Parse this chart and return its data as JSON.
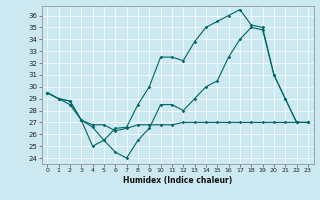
{
  "xlabel": "Humidex (Indice chaleur)",
  "bg_color": "#cce8f0",
  "line_color": "#006666",
  "xlim": [
    -0.5,
    23.5
  ],
  "ylim": [
    23.5,
    36.8
  ],
  "yticks": [
    24,
    25,
    26,
    27,
    28,
    29,
    30,
    31,
    32,
    33,
    34,
    35,
    36
  ],
  "xticks": [
    0,
    1,
    2,
    3,
    4,
    5,
    6,
    7,
    8,
    9,
    10,
    11,
    12,
    13,
    14,
    15,
    16,
    17,
    18,
    19,
    20,
    21,
    22,
    23
  ],
  "series1": {
    "x": [
      0,
      1,
      2,
      3,
      4,
      5,
      6,
      7,
      8,
      9,
      10,
      11,
      12,
      13,
      14,
      15,
      16,
      17,
      18,
      19,
      20,
      21,
      22,
      23
    ],
    "y": [
      29.5,
      29.0,
      28.8,
      27.2,
      26.6,
      25.5,
      26.5,
      26.6,
      28.5,
      30.0,
      32.5,
      32.5,
      32.2,
      33.8,
      35.0,
      35.5,
      36.0,
      36.5,
      35.2,
      35.0,
      31.0,
      29.0,
      27.0,
      27.0
    ]
  },
  "series2": {
    "x": [
      0,
      1,
      2,
      3,
      4,
      5,
      6,
      7,
      8,
      9,
      10,
      11,
      12,
      13,
      14,
      15,
      16,
      17,
      18,
      19,
      20,
      21,
      22,
      23
    ],
    "y": [
      29.5,
      29.0,
      28.8,
      27.2,
      25.0,
      25.5,
      24.5,
      24.0,
      25.5,
      26.5,
      28.5,
      28.5,
      28.0,
      29.0,
      30.0,
      30.5,
      32.5,
      34.0,
      35.0,
      34.8,
      31.0,
      29.0,
      27.0,
      27.0
    ]
  },
  "series3": {
    "x": [
      0,
      1,
      2,
      3,
      4,
      5,
      6,
      7,
      8,
      9,
      10,
      11,
      12,
      13,
      14,
      15,
      16,
      17,
      18,
      19,
      20,
      21,
      22,
      23
    ],
    "y": [
      29.5,
      29.0,
      28.5,
      27.2,
      26.8,
      26.8,
      26.3,
      26.5,
      26.8,
      26.8,
      26.8,
      26.8,
      27.0,
      27.0,
      27.0,
      27.0,
      27.0,
      27.0,
      27.0,
      27.0,
      27.0,
      27.0,
      27.0,
      27.0
    ]
  }
}
